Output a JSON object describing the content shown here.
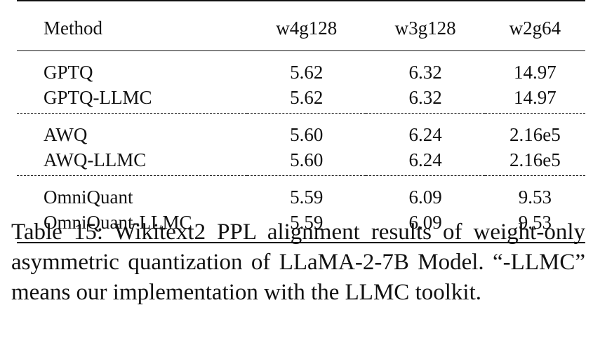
{
  "table": {
    "headers": [
      "Method",
      "w4g128",
      "w3g128",
      "w2g64"
    ],
    "groups": [
      [
        {
          "method": "GPTQ",
          "w4g128": "5.62",
          "w3g128": "6.32",
          "w2g64": "14.97"
        },
        {
          "method": "GPTQ-LLMC",
          "w4g128": "5.62",
          "w3g128": "6.32",
          "w2g64": "14.97"
        }
      ],
      [
        {
          "method": "AWQ",
          "w4g128": "5.60",
          "w3g128": "6.24",
          "w2g64": "2.16e5"
        },
        {
          "method": "AWQ-LLMC",
          "w4g128": "5.60",
          "w3g128": "6.24",
          "w2g64": "2.16e5"
        }
      ],
      [
        {
          "method": "OmniQuant",
          "w4g128": "5.59",
          "w3g128": "6.09",
          "w2g64": "9.53"
        },
        {
          "method": "OmniQuant-LLMC",
          "w4g128": "5.59",
          "w3g128": "6.09",
          "w2g64": "9.53"
        }
      ]
    ]
  },
  "caption": {
    "label": "Table 15:",
    "text": "Wikitext2 PPL alignment results of weight-only asymmetric quantization of LLaMA-2-7B Model. “-LLMC” means our implementation with the LLMC toolkit."
  }
}
